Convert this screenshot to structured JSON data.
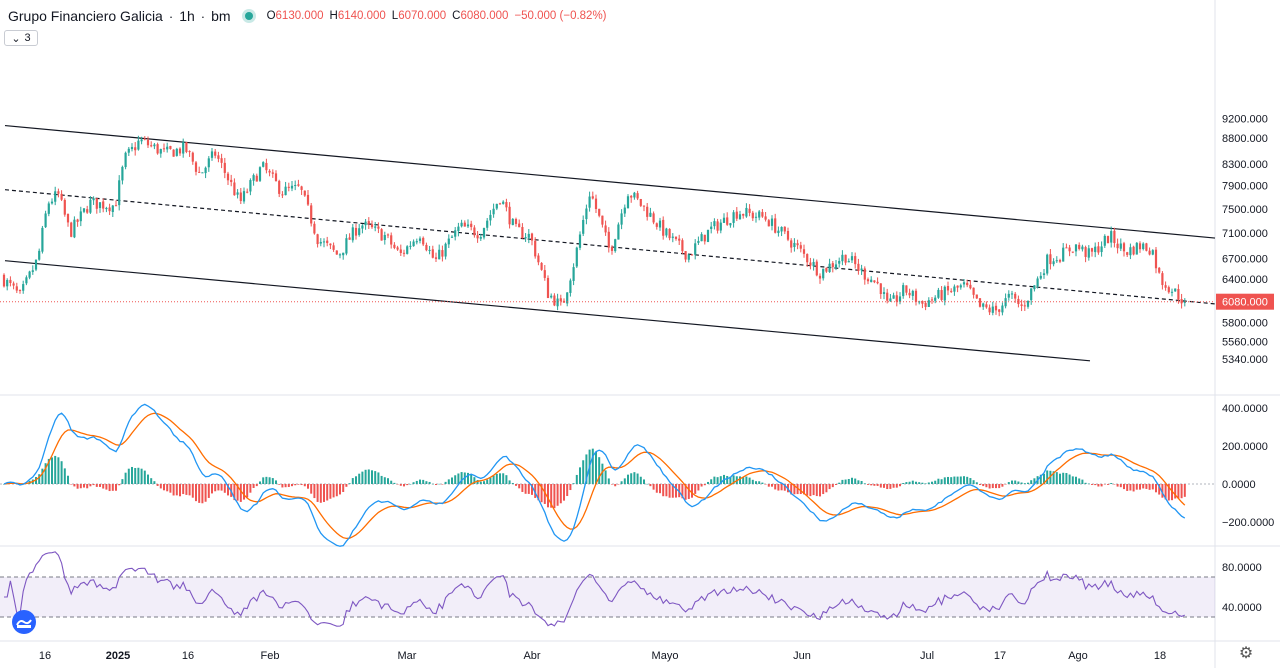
{
  "header": {
    "symbol": "Grupo Financiero Galicia",
    "interval": "1h",
    "exchange": "bm",
    "ohlc": {
      "o_label": "O",
      "o": "6130.000",
      "h_label": "H",
      "h": "6140.000",
      "l_label": "L",
      "l": "6070.000",
      "c_label": "C",
      "c": "6080.000",
      "change": "−50.000 (−0.82%)"
    },
    "collapse_label": "3"
  },
  "colors": {
    "up": "#26a69a",
    "down": "#ef5350",
    "macd": "#2196f3",
    "signal": "#ff6d00",
    "rsi": "#7e57c2",
    "channel": "#131722",
    "price_line": "#ef5350"
  },
  "chart_data": [
    {
      "type": "candlestick",
      "title": "Grupo Financiero Galicia · 1h · bm",
      "y_ticks": [
        "9200.000",
        "8800.000",
        "8300.000",
        "7900.000",
        "7500.000",
        "7100.000",
        "6700.000",
        "6400.000",
        "6080.000",
        "5800.000",
        "5560.000",
        "5340.000"
      ],
      "last_price": "6080.000",
      "x_ticks": [
        "16",
        "2025",
        "16",
        "Feb",
        "Mar",
        "Abr",
        "Mayo",
        "Jun",
        "Jul",
        "17",
        "Ago",
        "18"
      ],
      "log_scale": true,
      "anchors": [
        {
          "x": 0,
          "y": 6450
        },
        {
          "x": 20,
          "y": 6150
        },
        {
          "x": 38,
          "y": 6700
        },
        {
          "x": 48,
          "y": 7600
        },
        {
          "x": 58,
          "y": 7750
        },
        {
          "x": 70,
          "y": 7100
        },
        {
          "x": 90,
          "y": 7600
        },
        {
          "x": 115,
          "y": 7550
        },
        {
          "x": 125,
          "y": 8400
        },
        {
          "x": 140,
          "y": 8750
        },
        {
          "x": 165,
          "y": 8500
        },
        {
          "x": 185,
          "y": 8600
        },
        {
          "x": 200,
          "y": 8100
        },
        {
          "x": 215,
          "y": 8500
        },
        {
          "x": 240,
          "y": 7600
        },
        {
          "x": 262,
          "y": 8250
        },
        {
          "x": 282,
          "y": 7800
        },
        {
          "x": 300,
          "y": 7850
        },
        {
          "x": 318,
          "y": 7000
        },
        {
          "x": 338,
          "y": 6750
        },
        {
          "x": 360,
          "y": 7250
        },
        {
          "x": 385,
          "y": 7050
        },
        {
          "x": 400,
          "y": 6750
        },
        {
          "x": 420,
          "y": 7100
        },
        {
          "x": 435,
          "y": 6650
        },
        {
          "x": 460,
          "y": 7200
        },
        {
          "x": 480,
          "y": 7100
        },
        {
          "x": 500,
          "y": 7700
        },
        {
          "x": 515,
          "y": 7150
        },
        {
          "x": 530,
          "y": 7050
        },
        {
          "x": 548,
          "y": 6200
        },
        {
          "x": 562,
          "y": 6000
        },
        {
          "x": 575,
          "y": 6700
        },
        {
          "x": 590,
          "y": 7800
        },
        {
          "x": 610,
          "y": 6800
        },
        {
          "x": 628,
          "y": 7800
        },
        {
          "x": 645,
          "y": 7500
        },
        {
          "x": 665,
          "y": 7100
        },
        {
          "x": 688,
          "y": 6750
        },
        {
          "x": 710,
          "y": 7150
        },
        {
          "x": 738,
          "y": 7450
        },
        {
          "x": 765,
          "y": 7350
        },
        {
          "x": 795,
          "y": 6900
        },
        {
          "x": 820,
          "y": 6500
        },
        {
          "x": 845,
          "y": 6750
        },
        {
          "x": 862,
          "y": 6500
        },
        {
          "x": 880,
          "y": 6300
        },
        {
          "x": 888,
          "y": 6000
        },
        {
          "x": 905,
          "y": 6250
        },
        {
          "x": 922,
          "y": 6050
        },
        {
          "x": 945,
          "y": 6200
        },
        {
          "x": 965,
          "y": 6300
        },
        {
          "x": 980,
          "y": 6000
        },
        {
          "x": 995,
          "y": 5950
        },
        {
          "x": 1010,
          "y": 6150
        },
        {
          "x": 1022,
          "y": 6000
        },
        {
          "x": 1038,
          "y": 6400
        },
        {
          "x": 1048,
          "y": 6700
        },
        {
          "x": 1060,
          "y": 6750
        },
        {
          "x": 1075,
          "y": 6900
        },
        {
          "x": 1090,
          "y": 6750
        },
        {
          "x": 1110,
          "y": 7050
        },
        {
          "x": 1125,
          "y": 6800
        },
        {
          "x": 1140,
          "y": 6900
        },
        {
          "x": 1152,
          "y": 6850
        },
        {
          "x": 1160,
          "y": 6400
        },
        {
          "x": 1172,
          "y": 6250
        },
        {
          "x": 1185,
          "y": 6080
        }
      ],
      "channel_upper": [
        [
          5,
          9050
        ],
        [
          1215,
          7020
        ]
      ],
      "channel_mid": [
        [
          5,
          7830
        ],
        [
          1215,
          6050
        ]
      ],
      "channel_lower": [
        [
          5,
          6670
        ],
        [
          1090,
          5320
        ]
      ]
    },
    {
      "type": "macd",
      "y_ticks": [
        "400.0000",
        "200.0000",
        "0.0000",
        "−200.0000"
      ],
      "series": [
        {
          "name": "",
          "color": "#2196f3"
        },
        {
          "name": "",
          "color": "#ff6d00"
        }
      ]
    },
    {
      "type": "rsi",
      "y_ticks": [
        "80.0000",
        "40.0000"
      ],
      "bands": [
        70,
        30
      ]
    }
  ]
}
